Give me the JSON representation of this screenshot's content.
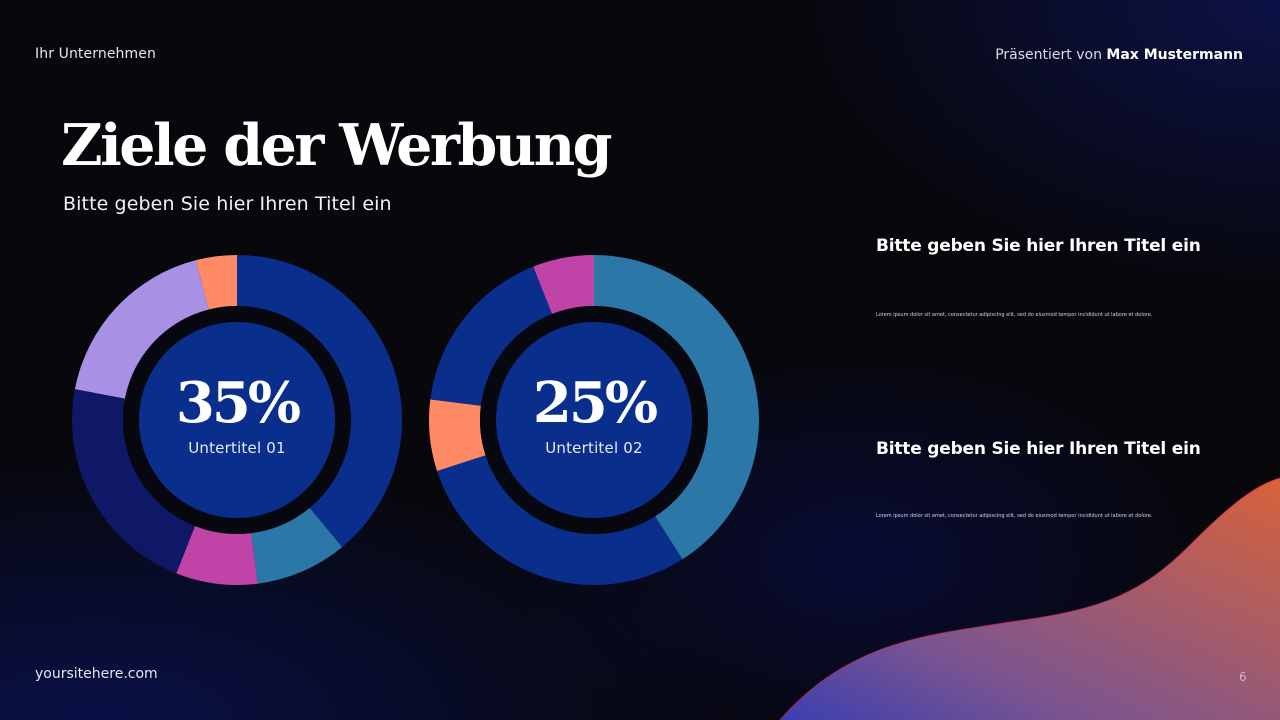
{
  "header": {
    "company": "Ihr Unternehmen",
    "presented_by_prefix": "Präsentiert von",
    "presenter": "Max Mustermann"
  },
  "slide": {
    "title": "Ziele der Werbung",
    "subtitle": "Bitte geben Sie hier Ihren Titel ein"
  },
  "info_blocks": [
    {
      "title": "Bitte geben Sie hier Ihren Titel ein",
      "body": "Lorem ipsum dolor sit amet, consectetur adipiscing elit, sed do eiusmod tempor incididunt ut labore et dolore."
    },
    {
      "title": "Bitte geben Sie hier Ihren Titel ein",
      "body": "Lorem ipsum dolor sit amet, consectetur adipiscing elit, sed do eiusmod tempor incididunt ut labore et dolore."
    }
  ],
  "footer": {
    "website": "yoursitehere.com",
    "page_number": "6"
  },
  "colors": {
    "dark_blue": "#0a2e8c",
    "navy": "#0e1866",
    "teal": "#2a77a8",
    "pink": "#c044a8",
    "lavender": "#a890e4",
    "orange": "#ff8a65",
    "center_fill": "#0a2e8c",
    "ring_gap": "#07070f"
  },
  "chart_data": [
    {
      "type": "pie",
      "variant": "donut",
      "center_value": "35%",
      "center_label": "Untertitel 01",
      "segments": [
        {
          "color": "#0a2e8c",
          "value": 39
        },
        {
          "color": "#2a77a8",
          "value": 9
        },
        {
          "color": "#c044a8",
          "value": 8
        },
        {
          "color": "#0e1866",
          "value": 22
        },
        {
          "color": "#a890e4",
          "value": 18
        },
        {
          "color": "#ff8a65",
          "value": 4
        }
      ]
    },
    {
      "type": "pie",
      "variant": "donut",
      "center_value": "25%",
      "center_label": "Untertitel 02",
      "segments": [
        {
          "color": "#2a77a8",
          "value": 41
        },
        {
          "color": "#0a2e8c",
          "value": 29
        },
        {
          "color": "#ff8a65",
          "value": 7
        },
        {
          "color": "#0a2e8c",
          "value": 17
        },
        {
          "color": "#c044a8",
          "value": 6
        }
      ]
    }
  ]
}
